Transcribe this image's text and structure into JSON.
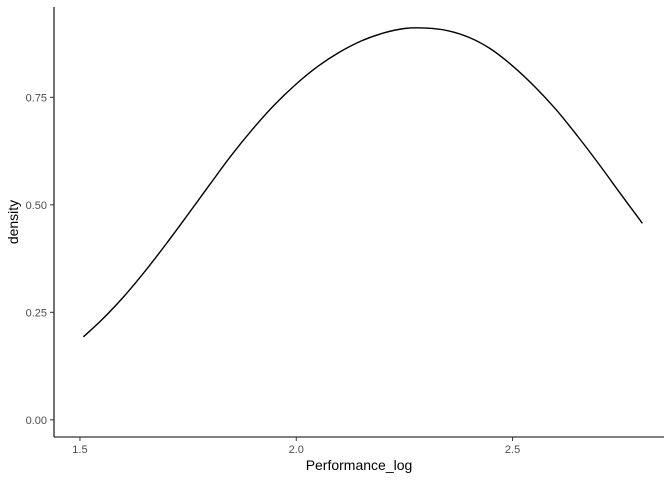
{
  "chart_data": {
    "type": "line",
    "title": "",
    "xlabel": "Performance_log",
    "ylabel": "density",
    "xlim": [
      1.44,
      2.85
    ],
    "ylim": [
      -0.04,
      0.96
    ],
    "x_ticks": [
      1.5,
      2.0,
      2.5
    ],
    "x_tick_labels": [
      "1.5",
      "2.0",
      "2.5"
    ],
    "y_ticks": [
      0.0,
      0.25,
      0.5,
      0.75
    ],
    "y_tick_labels": [
      "0.00",
      "0.25",
      "0.50",
      "0.75"
    ],
    "grid": false,
    "legend": "none",
    "line_color": "#000000",
    "series": [
      {
        "x": [
          1.508,
          1.55,
          1.6,
          1.65,
          1.7,
          1.75,
          1.8,
          1.85,
          1.9,
          1.95,
          2.0,
          2.05,
          2.1,
          2.15,
          2.2,
          2.25,
          2.3,
          2.35,
          2.4,
          2.45,
          2.5,
          2.55,
          2.6,
          2.65,
          2.7,
          2.75,
          2.8
        ],
        "y": [
          0.193,
          0.232,
          0.285,
          0.345,
          0.41,
          0.478,
          0.547,
          0.615,
          0.677,
          0.733,
          0.781,
          0.822,
          0.855,
          0.881,
          0.899,
          0.91,
          0.911,
          0.905,
          0.889,
          0.862,
          0.823,
          0.776,
          0.722,
          0.66,
          0.594,
          0.525,
          0.457
        ]
      }
    ]
  }
}
